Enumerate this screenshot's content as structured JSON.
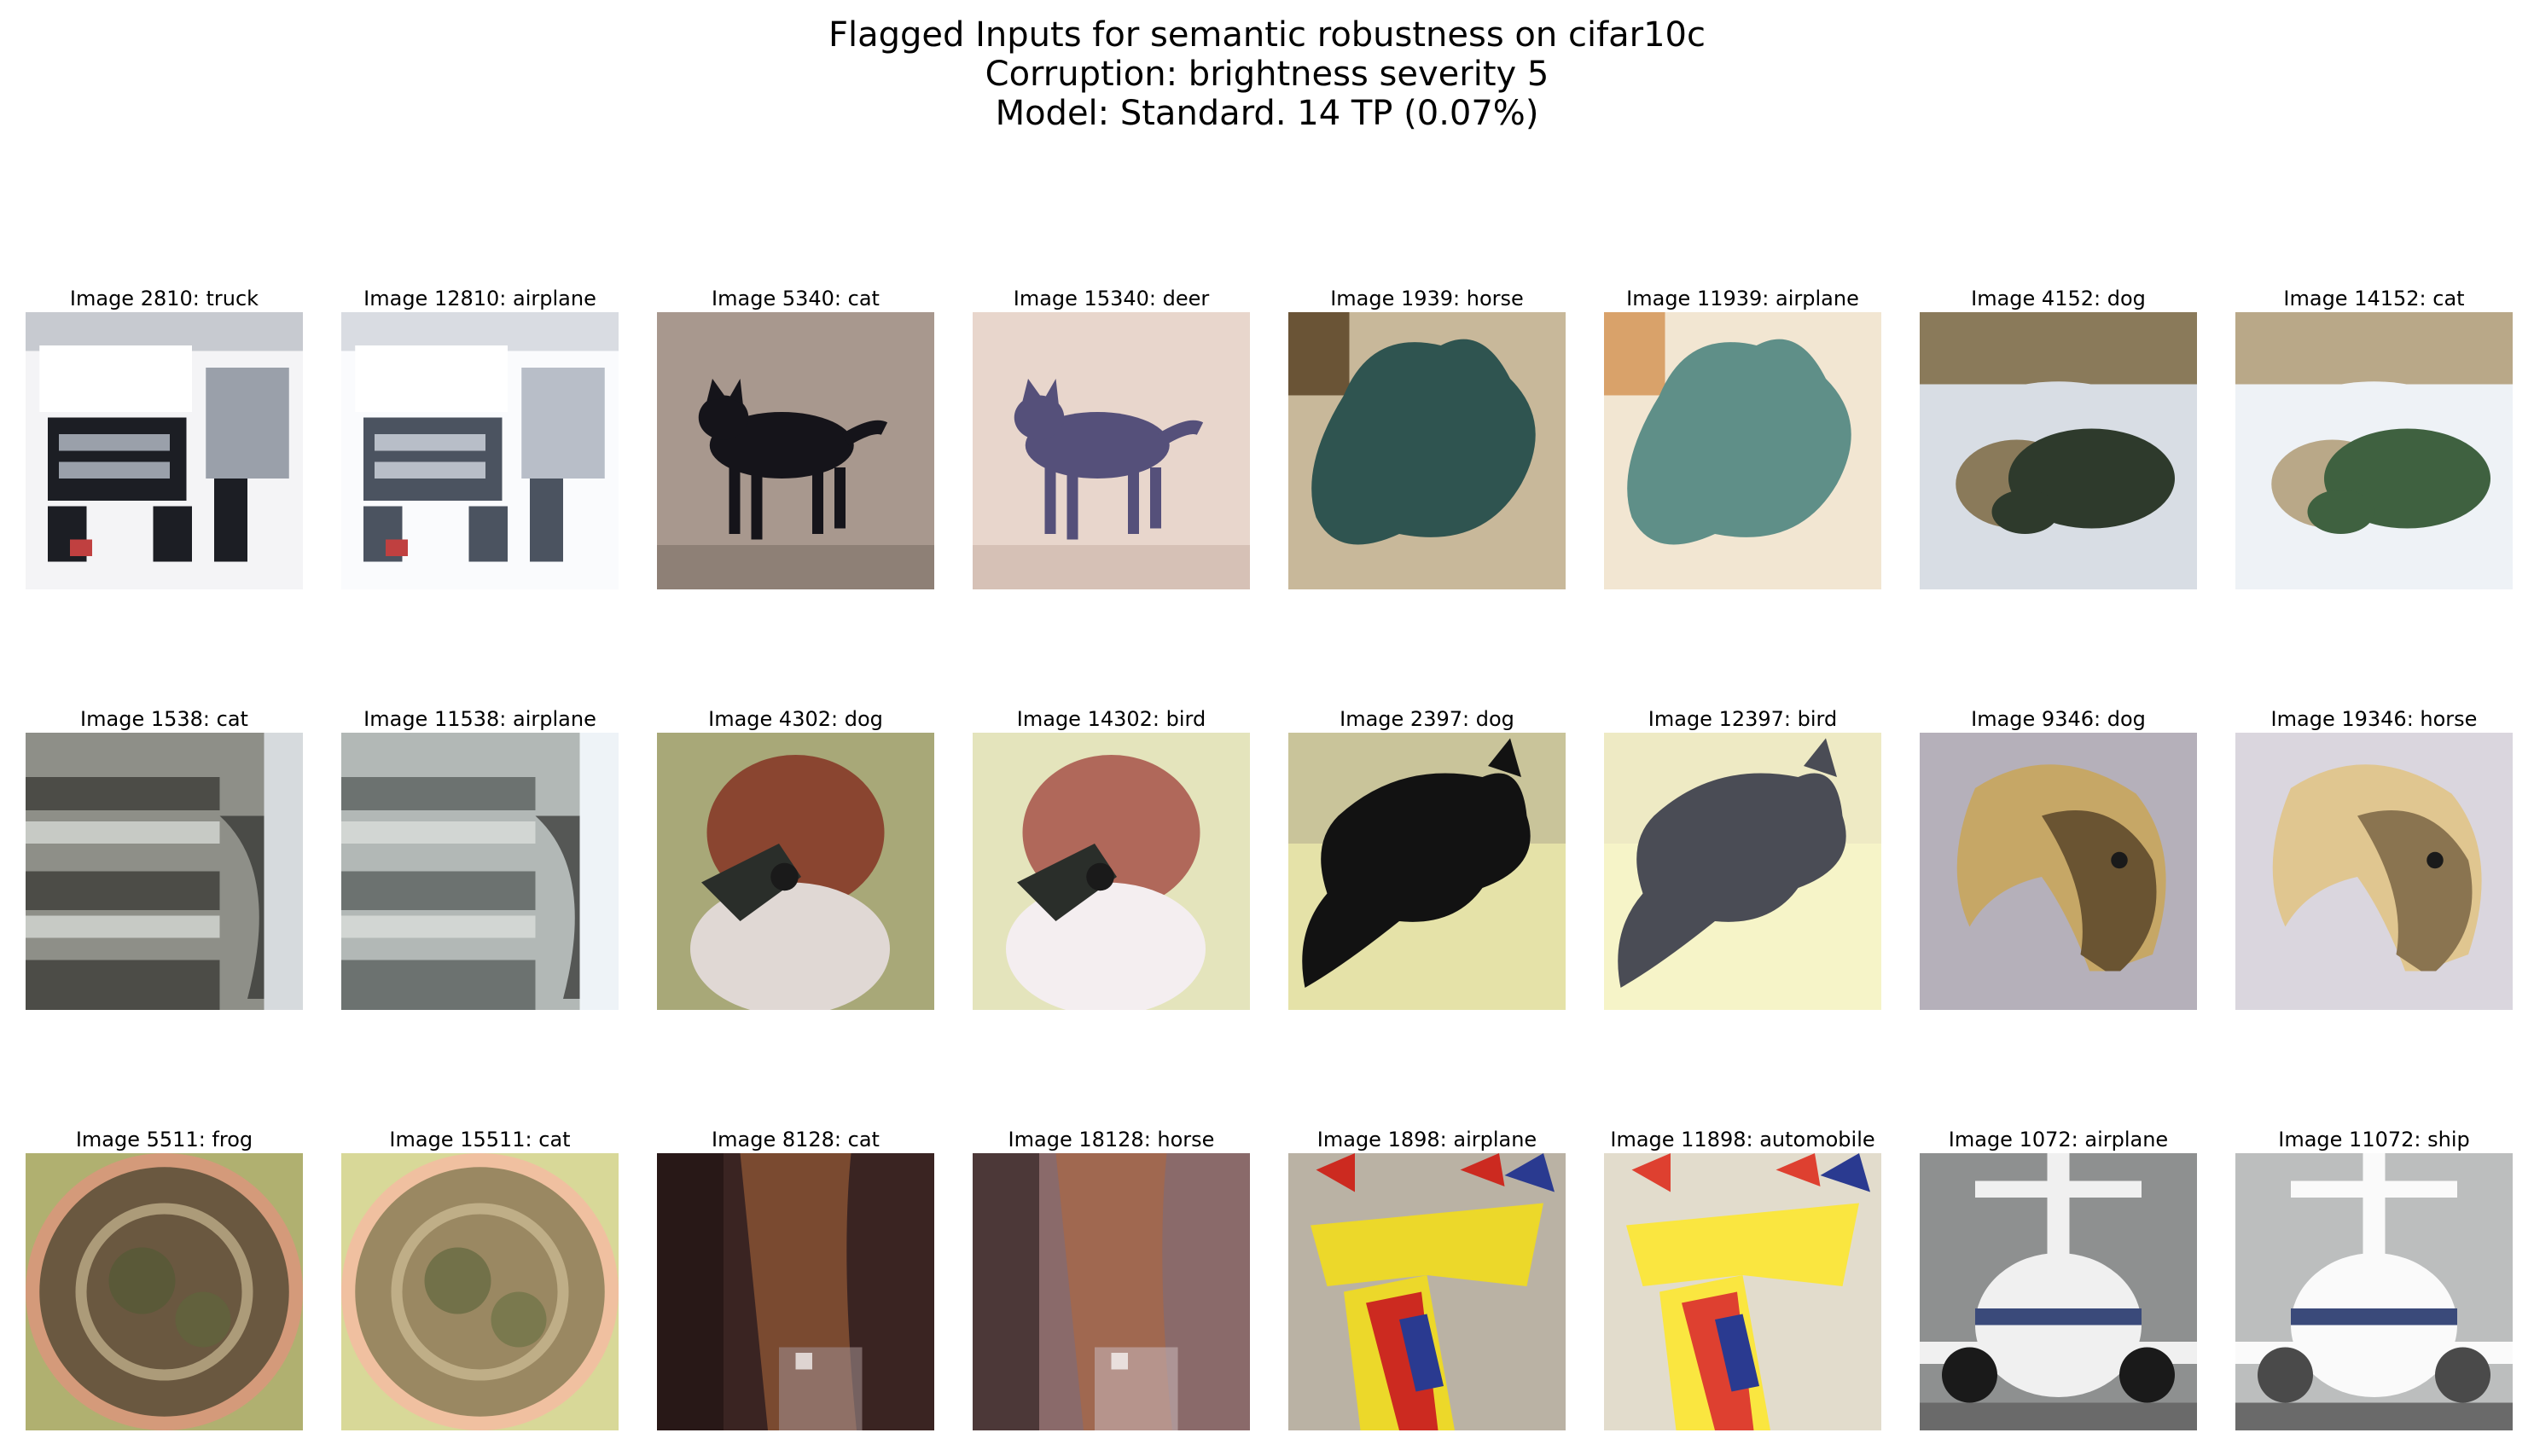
{
  "title": {
    "line1": "Flagged Inputs for semantic robustness on cifar10c",
    "line2": "Corruption: brightness severity 5",
    "line3": "Model: Standard. 14 TP (0.07%)"
  },
  "images": [
    {
      "caption": "Image 2810: truck",
      "subject": "truck",
      "bg": "#f4f4f6",
      "fg": "#1c1e24",
      "accent": "#9aa0aa"
    },
    {
      "caption": "Image 12810: airplane",
      "subject": "truck",
      "bg": "#fafbfd",
      "fg": "#4b5360",
      "accent": "#b8bec8"
    },
    {
      "caption": "Image 5340: cat",
      "subject": "cat",
      "bg": "#a8988e",
      "fg": "#15141a",
      "accent": "#7d6f65"
    },
    {
      "caption": "Image 15340: deer",
      "subject": "cat",
      "bg": "#e8d6cc",
      "fg": "#55507a",
      "accent": "#c9b3a6"
    },
    {
      "caption": "Image 1939: horse",
      "subject": "statue",
      "bg": "#c8b89a",
      "fg": "#2f5450",
      "accent": "#6a5436"
    },
    {
      "caption": "Image 11939: airplane",
      "subject": "statue",
      "bg": "#f2e6d2",
      "fg": "#5f8f88",
      "accent": "#d9a26a"
    },
    {
      "caption": "Image 4152: dog",
      "subject": "dogs",
      "bg": "#d8dde4",
      "fg": "#2e3a2c",
      "accent": "#8a7a5a"
    },
    {
      "caption": "Image 14152: cat",
      "subject": "dogs",
      "bg": "#eef2f6",
      "fg": "#3f6140",
      "accent": "#b9a888"
    },
    {
      "caption": "Image 1538: cat",
      "subject": "stairs",
      "bg": "#d6dadd",
      "fg": "#4c4c47",
      "accent": "#8e8f88"
    },
    {
      "caption": "Image 11538: airplane",
      "subject": "stairs",
      "bg": "#eef3f7",
      "fg": "#6c7270",
      "accent": "#b2b8b6"
    },
    {
      "caption": "Image 4302: dog",
      "subject": "bird",
      "bg": "#a8a878",
      "fg": "#8a4530",
      "accent": "#e0d8d4"
    },
    {
      "caption": "Image 14302: bird",
      "subject": "bird",
      "bg": "#e4e4bc",
      "fg": "#b0685a",
      "accent": "#f4eef0"
    },
    {
      "caption": "Image 2397: dog",
      "subject": "blackdog",
      "bg": "#c9c49a",
      "fg": "#121212",
      "accent": "#e5e2a8"
    },
    {
      "caption": "Image 12397: bird",
      "subject": "blackdog",
      "bg": "#eeeac4",
      "fg": "#4a4c55",
      "accent": "#f6f4c8"
    },
    {
      "caption": "Image 9346: dog",
      "subject": "horsehead",
      "bg": "#b5b0ba",
      "fg": "#6a5432",
      "accent": "#c6a766"
    },
    {
      "caption": "Image 19346: horse",
      "subject": "horsehead",
      "bg": "#dad6de",
      "fg": "#8a7450",
      "accent": "#e0c690"
    },
    {
      "caption": "Image 5511: frog",
      "subject": "frog",
      "bg": "#b0b070",
      "fg": "#6a5840",
      "accent": "#d49a7a"
    },
    {
      "caption": "Image 15511: cat",
      "subject": "frog",
      "bg": "#d8d898",
      "fg": "#9a8862",
      "accent": "#f0c0a0"
    },
    {
      "caption": "Image 8128: cat",
      "subject": "horse",
      "bg": "#3a2422",
      "fg": "#7a4a30",
      "accent": "#9c8a8a"
    },
    {
      "caption": "Image 18128: horse",
      "subject": "horse",
      "bg": "#8a6a6a",
      "fg": "#a06850",
      "accent": "#c4b2b4"
    },
    {
      "caption": "Image 1898: airplane",
      "subject": "plane",
      "bg": "#bab2a4",
      "fg": "#ecd82a",
      "accent": "#cc2a20"
    },
    {
      "caption": "Image 11898: automobile",
      "subject": "plane",
      "bg": "#e2dccc",
      "fg": "#fae640",
      "accent": "#de4030"
    },
    {
      "caption": "Image 1072: airplane",
      "subject": "jet",
      "bg": "#8e9090",
      "fg": "#f0f0f0",
      "accent": "#1a1a1a"
    },
    {
      "caption": "Image 11072: ship",
      "subject": "jet",
      "bg": "#bcbebe",
      "fg": "#fafafa",
      "accent": "#4a4a4a"
    }
  ]
}
